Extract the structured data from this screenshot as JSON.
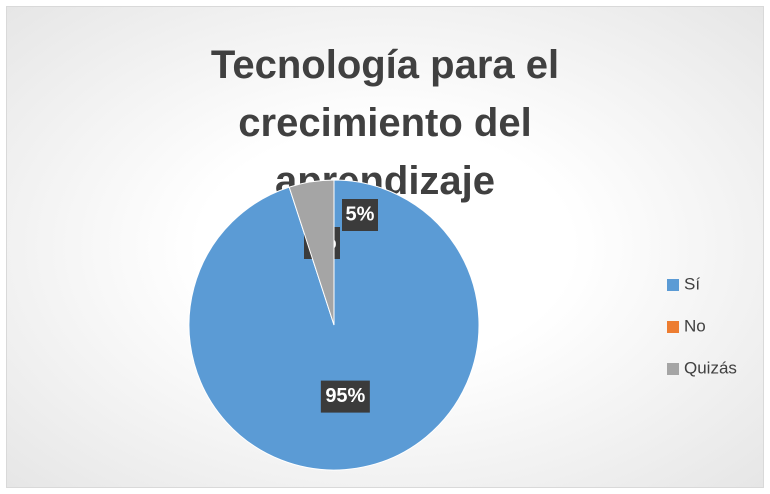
{
  "chart_data": {
    "type": "pie",
    "title": "Tecnología para el crecimiento del aprendizaje",
    "categories": [
      "Sí",
      "No",
      "Quizás"
    ],
    "values": [
      95,
      0,
      5
    ],
    "value_labels": [
      "95%",
      "0%",
      "5%"
    ],
    "colors": [
      "#5b9bd5",
      "#ed7d31",
      "#a5a5a5"
    ],
    "legend": "right"
  }
}
